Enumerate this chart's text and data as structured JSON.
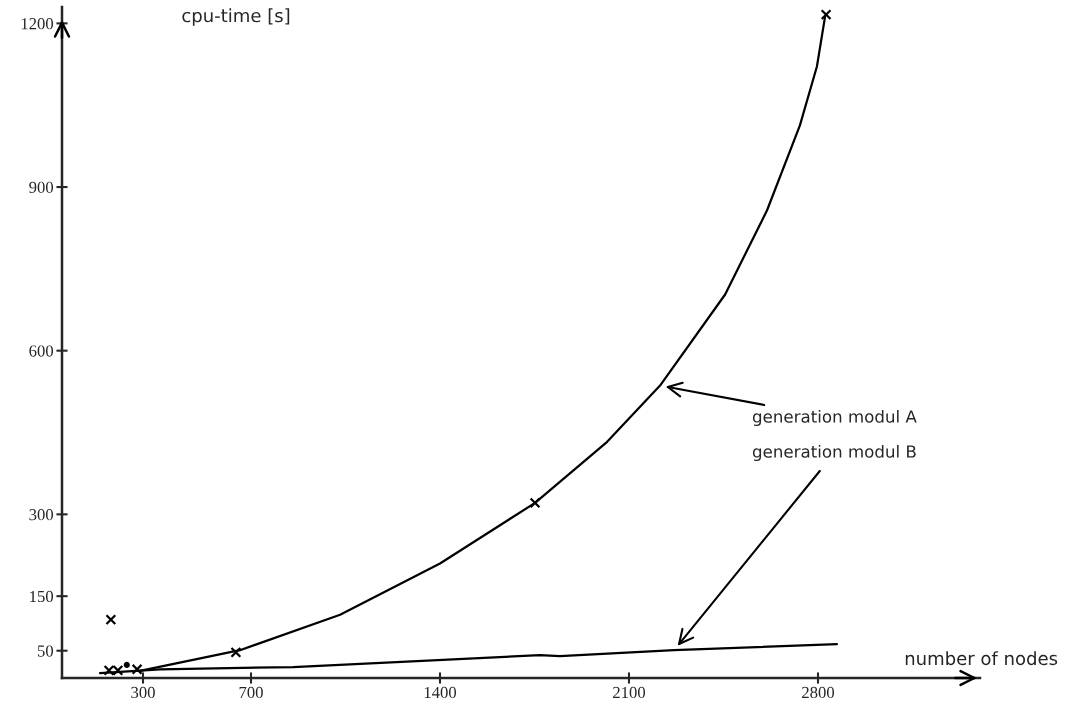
{
  "chart_data": {
    "type": "line",
    "xlabel": "number of nodes",
    "ylabel": "cpu-time [s]",
    "xlim": [
      0,
      3400
    ],
    "ylim": [
      0,
      1230
    ],
    "xticks": [
      300,
      700,
      1400,
      2100,
      2800
    ],
    "yticks": [
      50,
      150,
      300,
      600,
      900,
      1200
    ],
    "series": [
      {
        "color": "#000000",
        "marker": "none",
        "line_style": "solid",
        "x": [
          289,
          659,
          1030,
          1400,
          1752,
          2019,
          2215,
          2456,
          2611,
          2733,
          2796,
          2826
        ],
        "values": [
          13,
          51,
          116,
          210,
          321,
          433,
          536,
          703,
          857,
          1013,
          1121,
          1212
        ]
      },
      {
        "color": "#000000",
        "marker": "none",
        "line_style": "solid",
        "x": [
          141,
          363,
          856,
          1770,
          1844,
          2267,
          2870
        ],
        "values": [
          9,
          16,
          20,
          42,
          40,
          51,
          62
        ]
      },
      {
        "type": "scatter",
        "color": "#000000",
        "marker": "cross",
        "x": [
          174,
          181,
          207,
          278,
          644,
          1752,
          2830
        ],
        "values": [
          14,
          107,
          14,
          16,
          47,
          321,
          1216
        ]
      },
      {
        "type": "scatter",
        "color": "#000000",
        "marker": "circle",
        "x": [
          240
        ],
        "values": [
          24
        ]
      }
    ],
    "annotations": [
      {
        "text": "generation modul A",
        "x": 2215,
        "y": 536
      },
      {
        "text": "generation modul B",
        "x": 2267,
        "y": 51
      }
    ]
  }
}
